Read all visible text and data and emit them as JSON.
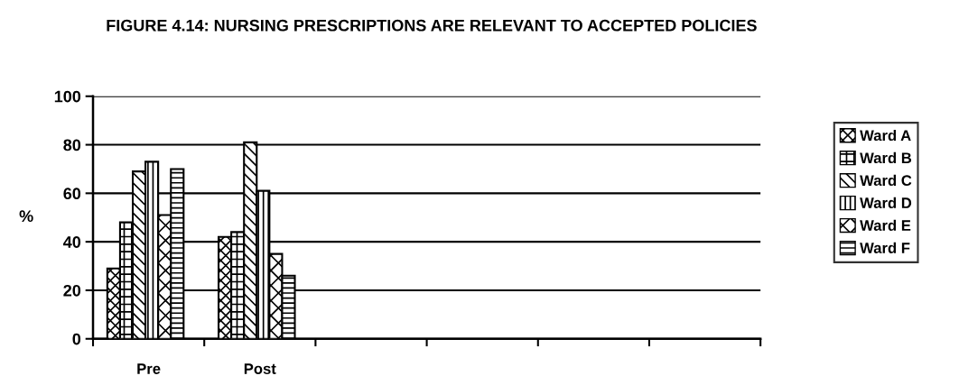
{
  "chart_data": {
    "type": "bar",
    "title": "FIGURE 4.14: NURSING PRESCRIPTIONS ARE RELEVANT TO ACCEPTED POLICIES",
    "ylabel": "%",
    "categories": [
      "Pre",
      "Post",
      null,
      null,
      null,
      null
    ],
    "series": [
      {
        "name": "Ward A",
        "color": "#000000",
        "values": [
          29,
          42,
          null,
          null,
          null,
          null
        ]
      },
      {
        "name": "Ward B",
        "color": "#000000",
        "values": [
          48,
          44,
          null,
          null,
          null,
          null
        ]
      },
      {
        "name": "Ward C",
        "color": "#000000",
        "values": [
          69,
          81,
          null,
          null,
          null,
          null
        ]
      },
      {
        "name": "Ward D",
        "color": "#000000",
        "values": [
          73,
          61,
          null,
          null,
          null,
          null
        ]
      },
      {
        "name": "Ward E",
        "color": "#000000",
        "values": [
          51,
          35,
          null,
          null,
          null,
          null
        ]
      },
      {
        "name": "Ward F",
        "color": "#000000",
        "values": [
          70,
          26,
          null,
          null,
          null,
          null
        ]
      }
    ],
    "ylim": [
      0,
      100
    ],
    "yticks": [
      0,
      20,
      40,
      60,
      80,
      100
    ],
    "grid": "y",
    "legend": "right"
  }
}
